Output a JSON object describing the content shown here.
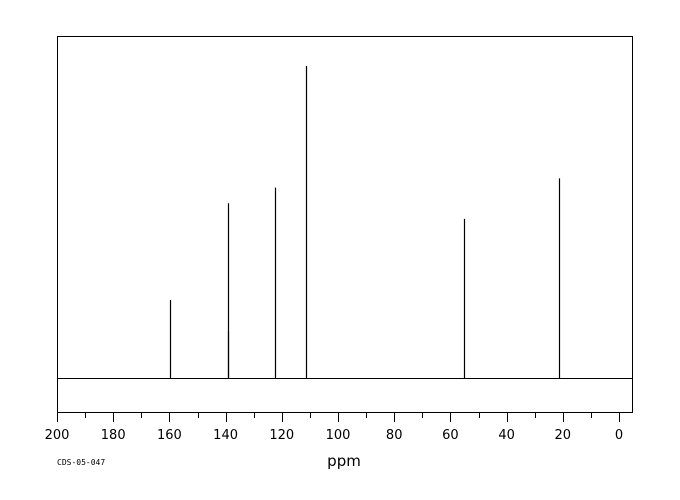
{
  "chart_data": {
    "type": "line",
    "subtype": "nmr-stick-spectrum",
    "xlabel": "ppm",
    "xlim": [
      200,
      -5
    ],
    "x_reversed": true,
    "ylim": [
      0,
      1
    ],
    "grid": false,
    "legend": "none",
    "spectrum_code": "CDS-05-047",
    "x_ticks": [
      200,
      180,
      160,
      140,
      120,
      100,
      80,
      60,
      40,
      20,
      0
    ],
    "x_tick_labels": [
      "200",
      "180",
      "160",
      "140",
      "120",
      "100",
      "80",
      "60",
      "40",
      "20",
      "0"
    ],
    "minor_tick_step": 10,
    "peaks": [
      {
        "x": 159.8,
        "y": 0.25
      },
      {
        "x": 139.3,
        "y": 0.56
      },
      {
        "x": 139.1,
        "y": 0.15
      },
      {
        "x": 122.3,
        "y": 0.61
      },
      {
        "x": 111.5,
        "y": 1.0
      },
      {
        "x": 55.1,
        "y": 0.51
      },
      {
        "x": 21.4,
        "y": 0.64
      }
    ],
    "colors": {
      "line": "#000000",
      "background": "#ffffff"
    }
  }
}
